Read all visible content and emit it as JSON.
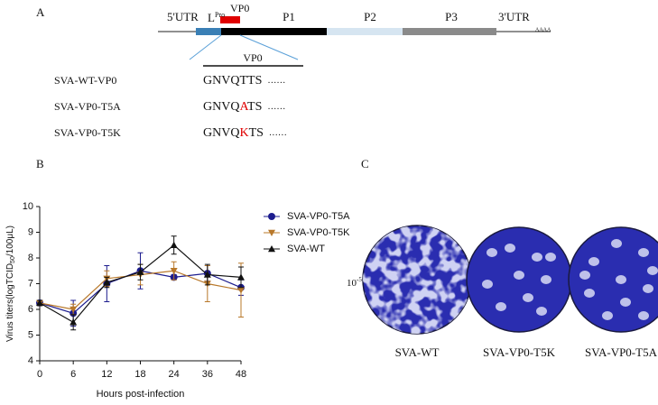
{
  "panel_a": {
    "label": "A",
    "genome": {
      "utr5": "5'UTR",
      "lpro": "L",
      "lpro_sup": "Pro",
      "vp0": "VP0",
      "p1": "P1",
      "p2": "P2",
      "p3": "P3",
      "utr3": "3'UTR",
      "polya": "AAAA"
    },
    "zoom_label": "VP0",
    "rows": [
      {
        "name": "SVA-WT-VP0",
        "before": "GNVQ",
        "residue": "T",
        "after": "TS",
        "mutant": false,
        "ellipsis": "……"
      },
      {
        "name": "SVA-VP0-T5A",
        "before": "GNVQ",
        "residue": "A",
        "after": "TS",
        "mutant": true,
        "ellipsis": "……"
      },
      {
        "name": "SVA-VP0-T5K",
        "before": "GNVQ",
        "residue": "K",
        "after": "TS",
        "mutant": true,
        "ellipsis": "……"
      }
    ]
  },
  "chart_data": {
    "type": "line",
    "panel_label": "B",
    "xlabel": "Hours post-infection",
    "ylabel": [
      "Virus titers(logTCID",
      "50",
      "/100μL)"
    ],
    "categories": [
      "0",
      "6",
      "12",
      "18",
      "24",
      "36",
      "48"
    ],
    "ylim": [
      4,
      10
    ],
    "yticks": [
      4,
      5,
      6,
      7,
      8,
      9,
      10
    ],
    "series": [
      {
        "name": "SVA-VP0-T5A",
        "color": "#1c1c8e",
        "marker": "circle",
        "values": [
          6.25,
          5.85,
          7.0,
          7.5,
          7.25,
          7.4,
          6.85
        ],
        "errors": [
          0.1,
          0.5,
          0.7,
          0.7,
          0.1,
          0.3,
          0.3
        ]
      },
      {
        "name": "SVA-VP0-T5K",
        "color": "#b8782a",
        "marker": "triangle-down",
        "values": [
          6.25,
          6.0,
          7.2,
          7.35,
          7.5,
          7.0,
          6.75
        ],
        "errors": [
          0.1,
          0.2,
          0.3,
          0.4,
          0.35,
          0.7,
          1.05
        ]
      },
      {
        "name": "SVA-WT",
        "color": "#111111",
        "marker": "triangle-up",
        "values": [
          6.25,
          5.5,
          7.05,
          7.45,
          8.5,
          7.35,
          7.25
        ],
        "errors": [
          0.1,
          0.3,
          0.2,
          0.3,
          0.35,
          0.4,
          0.4
        ]
      }
    ]
  },
  "panel_c": {
    "label": "C",
    "dilution": "10",
    "dilution_exp": "-5",
    "dishes": [
      "SVA-WT",
      "SVA-VP0-T5K",
      "SVA-VP0-T5A"
    ]
  }
}
